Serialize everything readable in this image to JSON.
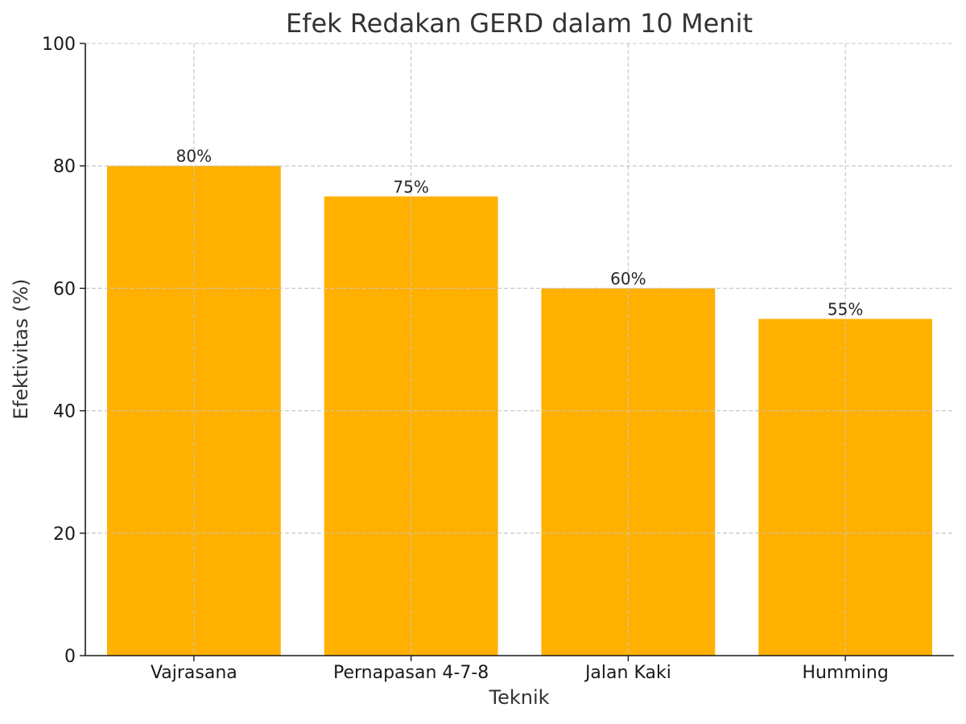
{
  "chart_data": {
    "type": "bar",
    "title": "Efek Redakan GERD dalam 10 Menit",
    "xlabel": "Teknik",
    "ylabel": "Efektivitas (%)",
    "categories": [
      "Vajrasana",
      "Pernapasan 4-7-8",
      "Jalan Kaki",
      "Humming"
    ],
    "values": [
      80,
      75,
      60,
      55
    ],
    "value_labels": [
      "80%",
      "75%",
      "60%",
      "55%"
    ],
    "ylim": [
      0,
      100
    ],
    "yticks": [
      0,
      20,
      40,
      60,
      80,
      100
    ],
    "ytick_labels": [
      "0",
      "20",
      "40",
      "60",
      "80",
      "100"
    ],
    "grid": true,
    "legend": "none",
    "bar_color": "#FFB000"
  }
}
